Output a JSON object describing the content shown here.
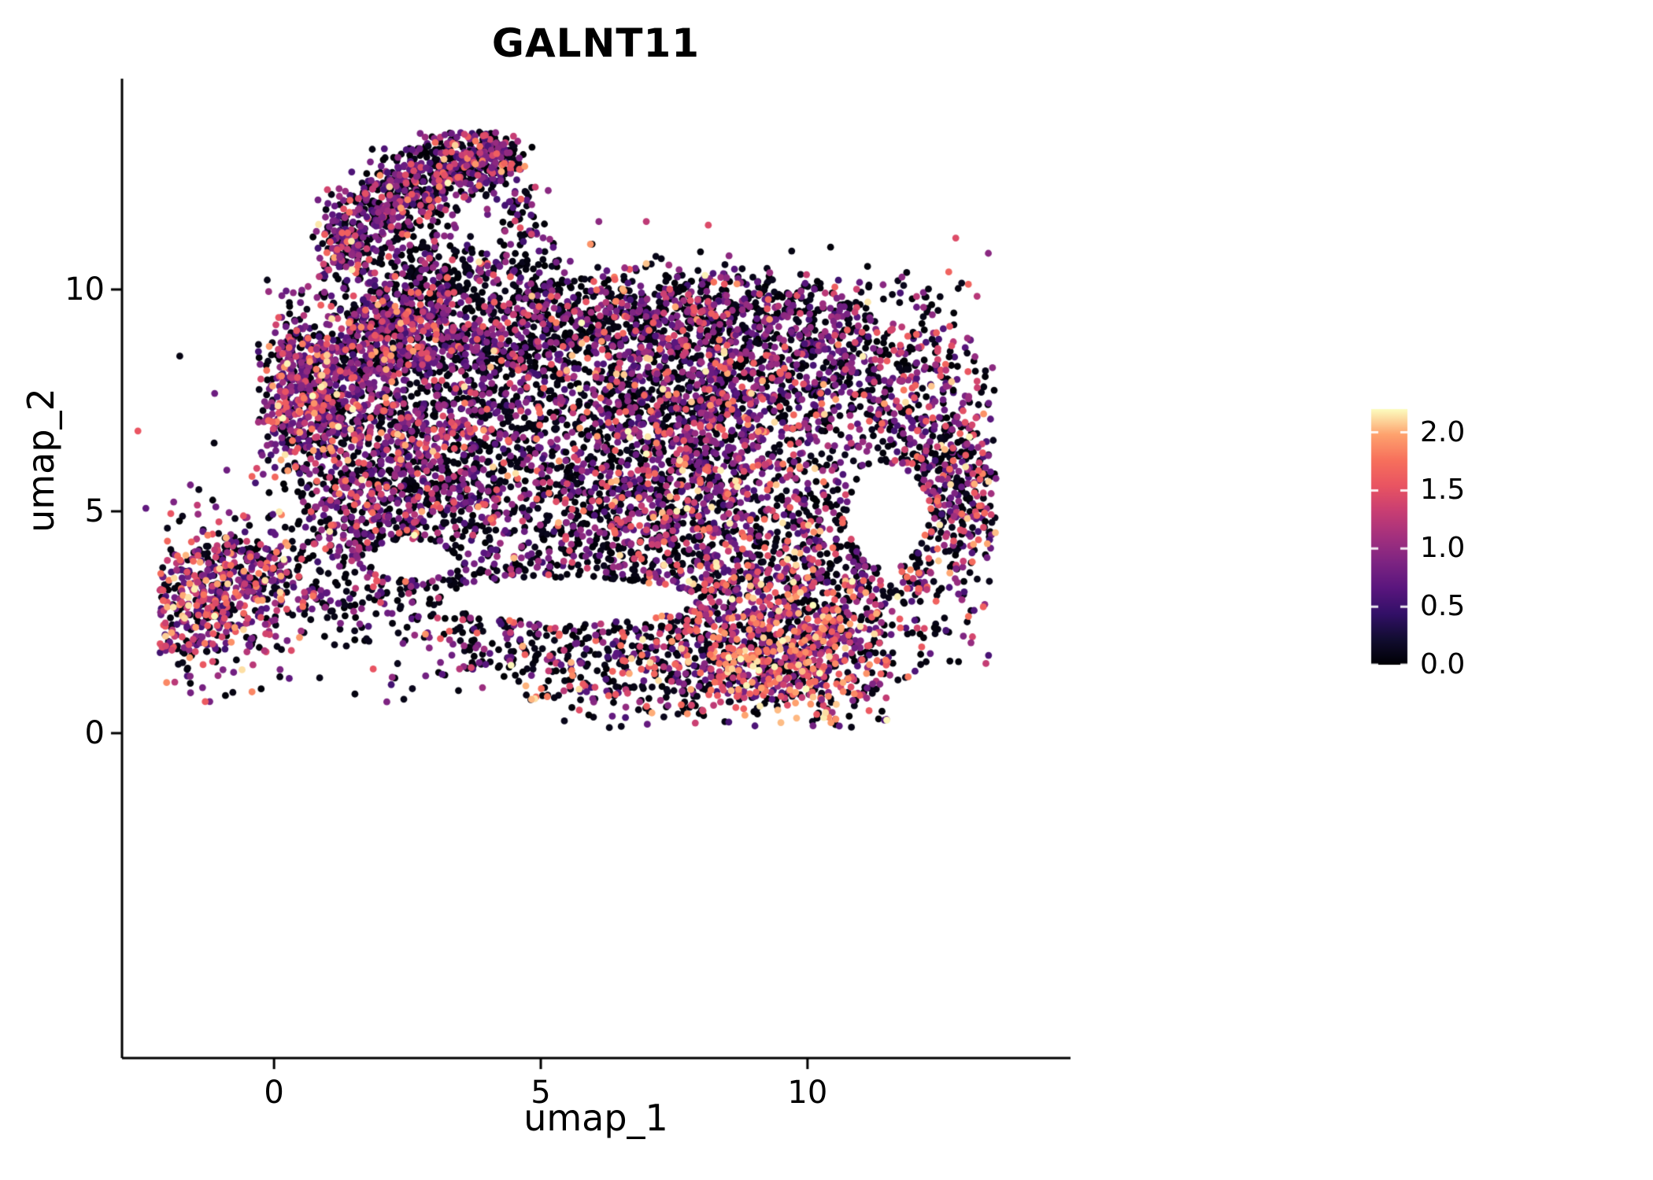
{
  "chart_data": {
    "type": "scatter",
    "title": "GALNT11",
    "xlabel": "umap_1",
    "ylabel": "umap_2",
    "xlim": [
      -2.85,
      14.93
    ],
    "ylim": [
      -7.32,
      14.75
    ],
    "grid": false,
    "legend_position": "right",
    "x_ticks": [
      {
        "value": 0,
        "label": "0"
      },
      {
        "value": 5,
        "label": "5"
      },
      {
        "value": 10,
        "label": "10"
      }
    ],
    "y_ticks": [
      {
        "value": 0,
        "label": "0"
      },
      {
        "value": 5,
        "label": "5"
      },
      {
        "value": 10,
        "label": "10"
      }
    ],
    "point_radius": 4.4,
    "color_domain": [
      0,
      2.2
    ],
    "colormap": [
      {
        "t": 0.0,
        "color": "#000004"
      },
      {
        "t": 0.1,
        "color": "#120d31"
      },
      {
        "t": 0.2,
        "color": "#331068"
      },
      {
        "t": 0.3,
        "color": "#5a167e"
      },
      {
        "t": 0.4,
        "color": "#7d2482"
      },
      {
        "t": 0.5,
        "color": "#a3307e"
      },
      {
        "t": 0.6,
        "color": "#c83e73"
      },
      {
        "t": 0.7,
        "color": "#e95462"
      },
      {
        "t": 0.8,
        "color": "#f7705c"
      },
      {
        "t": 0.9,
        "color": "#fea26e"
      },
      {
        "t": 1.0,
        "color": "#fcfdbf"
      }
    ],
    "colorbar": {
      "ticks": [
        {
          "value": 2.0,
          "label": "2.0"
        },
        {
          "value": 1.5,
          "label": "1.5"
        },
        {
          "value": 1.0,
          "label": "1.0"
        },
        {
          "value": 0.5,
          "label": "0.5"
        },
        {
          "value": 0.0,
          "label": "0.0"
        }
      ]
    },
    "expression_levels": [
      {
        "name": "zero",
        "range": [
          0.0,
          0.12
        ]
      },
      {
        "name": "purple",
        "range": [
          0.5,
          1.1
        ]
      },
      {
        "name": "pink",
        "range": [
          1.2,
          1.7
        ]
      },
      {
        "name": "orange",
        "range": [
          1.7,
          2.2
        ]
      }
    ],
    "seed": 1234567,
    "holes": [
      {
        "cx": 5.5,
        "cy": 3.0,
        "rx": 2.4,
        "ry": 0.5
      },
      {
        "cx": 11.5,
        "cy": 4.9,
        "rx": 0.75,
        "ry": 1.15
      },
      {
        "cx": 2.6,
        "cy": 3.9,
        "rx": 0.8,
        "ry": 0.45
      }
    ],
    "clusters": [
      {
        "cx": 1.3,
        "cy": 11.1,
        "sx": 0.25,
        "sy": 0.4,
        "n": 150,
        "p": [
          0.45,
          0.4,
          0.12,
          0.03
        ]
      },
      {
        "cx": 2.0,
        "cy": 11.9,
        "sx": 0.35,
        "sy": 0.45,
        "n": 180,
        "p": [
          0.45,
          0.4,
          0.12,
          0.03
        ]
      },
      {
        "cx": 2.8,
        "cy": 12.4,
        "sx": 0.4,
        "sy": 0.4,
        "n": 200,
        "p": [
          0.48,
          0.38,
          0.11,
          0.03
        ]
      },
      {
        "cx": 3.6,
        "cy": 12.9,
        "sx": 0.45,
        "sy": 0.35,
        "n": 220,
        "p": [
          0.45,
          0.4,
          0.12,
          0.03
        ]
      },
      {
        "cx": 4.15,
        "cy": 13.0,
        "sx": 0.28,
        "sy": 0.4,
        "n": 110,
        "p": [
          0.5,
          0.36,
          0.11,
          0.03
        ]
      },
      {
        "cx": 4.6,
        "cy": 11.6,
        "sx": 0.3,
        "sy": 0.5,
        "n": 60,
        "p": [
          0.55,
          0.33,
          0.09,
          0.03
        ]
      },
      {
        "cx": 2.5,
        "cy": 10.9,
        "sx": 0.55,
        "sy": 0.5,
        "n": 80,
        "p": [
          0.6,
          0.3,
          0.08,
          0.02
        ]
      },
      {
        "cx": 3.1,
        "cy": 10.2,
        "sx": 0.55,
        "sy": 0.45,
        "n": 70,
        "p": [
          0.65,
          0.27,
          0.06,
          0.02
        ]
      },
      {
        "cx": 3.9,
        "cy": 10.4,
        "sx": 1.0,
        "sy": 0.4,
        "n": 80,
        "p": [
          0.7,
          0.24,
          0.05,
          0.01
        ]
      },
      {
        "cx": 2.0,
        "cy": 9.8,
        "sx": 0.6,
        "sy": 0.6,
        "n": 90,
        "p": [
          0.6,
          0.3,
          0.08,
          0.02
        ]
      },
      {
        "cx": 1.0,
        "cy": 7.3,
        "sx": 0.75,
        "sy": 0.95,
        "n": 620,
        "p": [
          0.33,
          0.47,
          0.15,
          0.05
        ],
        "xmin": -0.3
      },
      {
        "cx": 0.45,
        "cy": 7.8,
        "sx": 0.35,
        "sy": 0.75,
        "n": 200,
        "p": [
          0.2,
          0.45,
          0.25,
          0.1
        ],
        "xmin": -0.3
      },
      {
        "cx": 2.2,
        "cy": 8.9,
        "sx": 0.7,
        "sy": 0.6,
        "n": 350,
        "p": [
          0.4,
          0.42,
          0.14,
          0.04
        ]
      },
      {
        "cx": 3.5,
        "cy": 8.8,
        "sx": 1.1,
        "sy": 0.8,
        "n": 480,
        "p": [
          0.52,
          0.36,
          0.1,
          0.02
        ]
      },
      {
        "cx": 2.9,
        "cy": 6.0,
        "sx": 1.2,
        "sy": 1.1,
        "n": 620,
        "p": [
          0.45,
          0.4,
          0.12,
          0.03
        ]
      },
      {
        "cx": 5.5,
        "cy": 7.4,
        "sx": 1.5,
        "sy": 1.3,
        "n": 750,
        "p": [
          0.56,
          0.33,
          0.09,
          0.02
        ]
      },
      {
        "cx": 7.9,
        "cy": 7.0,
        "sx": 1.0,
        "sy": 1.5,
        "n": 850,
        "p": [
          0.36,
          0.44,
          0.15,
          0.05
        ]
      },
      {
        "cx": 6.2,
        "cy": 9.4,
        "sx": 1.2,
        "sy": 0.5,
        "n": 280,
        "p": [
          0.6,
          0.31,
          0.07,
          0.02
        ]
      },
      {
        "cx": 9.0,
        "cy": 9.3,
        "sx": 1.3,
        "sy": 0.55,
        "n": 330,
        "p": [
          0.55,
          0.35,
          0.08,
          0.02
        ]
      },
      {
        "cx": 7.5,
        "cy": 10.0,
        "sx": 2.5,
        "sy": 0.35,
        "n": 160,
        "p": [
          0.6,
          0.3,
          0.08,
          0.02
        ],
        "ymax": 10.4
      },
      {
        "cx": 10.3,
        "cy": 8.0,
        "sx": 1.2,
        "sy": 0.9,
        "n": 520,
        "p": [
          0.5,
          0.37,
          0.1,
          0.03
        ]
      },
      {
        "cx": 12.4,
        "cy": 6.9,
        "sx": 0.55,
        "sy": 1.3,
        "n": 330,
        "p": [
          0.42,
          0.38,
          0.15,
          0.05
        ]
      },
      {
        "cx": 10.9,
        "cy": 5.2,
        "sx": 1.0,
        "sy": 1.1,
        "n": 150,
        "p": [
          0.65,
          0.25,
          0.08,
          0.02
        ]
      },
      {
        "cx": 6.5,
        "cy": 4.6,
        "sx": 1.5,
        "sy": 1.0,
        "n": 520,
        "p": [
          0.58,
          0.3,
          0.09,
          0.03
        ]
      },
      {
        "cx": 8.8,
        "cy": 3.3,
        "sx": 1.3,
        "sy": 1.0,
        "n": 620,
        "p": [
          0.38,
          0.3,
          0.22,
          0.1
        ]
      },
      {
        "cx": 6.8,
        "cy": 1.6,
        "sx": 1.8,
        "sy": 0.65,
        "n": 480,
        "p": [
          0.62,
          0.22,
          0.11,
          0.05
        ]
      },
      {
        "cx": 9.4,
        "cy": 1.4,
        "sx": 1.0,
        "sy": 0.6,
        "n": 380,
        "p": [
          0.28,
          0.22,
          0.3,
          0.2
        ]
      },
      {
        "cx": 10.3,
        "cy": 2.3,
        "sx": 0.8,
        "sy": 0.8,
        "n": 300,
        "p": [
          0.4,
          0.25,
          0.22,
          0.13
        ]
      },
      {
        "cx": 11.8,
        "cy": 3.9,
        "sx": 0.9,
        "sy": 1.0,
        "n": 300,
        "p": [
          0.5,
          0.27,
          0.16,
          0.07
        ]
      },
      {
        "cx": 12.95,
        "cy": 5.4,
        "sx": 0.4,
        "sy": 1.0,
        "n": 140,
        "p": [
          0.5,
          0.3,
          0.14,
          0.06
        ]
      },
      {
        "cx": 4.1,
        "cy": 2.9,
        "sx": 1.0,
        "sy": 0.8,
        "n": 230,
        "p": [
          0.68,
          0.22,
          0.08,
          0.02
        ]
      },
      {
        "cx": 1.9,
        "cy": 4.8,
        "sx": 0.85,
        "sy": 0.7,
        "n": 300,
        "p": [
          0.5,
          0.36,
          0.1,
          0.04
        ]
      },
      {
        "cx": -1.35,
        "cy": 3.0,
        "sx": 0.75,
        "sy": 0.85,
        "n": 560,
        "p": [
          0.3,
          0.4,
          0.21,
          0.09
        ],
        "xmin": -2.15
      },
      {
        "cx": -0.35,
        "cy": 3.7,
        "sx": 0.5,
        "sy": 0.5,
        "n": 140,
        "p": [
          0.45,
          0.35,
          0.14,
          0.06
        ]
      },
      {
        "cx": 1.2,
        "cy": 2.9,
        "sx": 0.95,
        "sy": 0.6,
        "n": 110,
        "p": [
          0.7,
          0.22,
          0.06,
          0.02
        ]
      },
      {
        "cx": 7.0,
        "cy": 6.2,
        "sx": 3.4,
        "sy": 2.6,
        "n": 650,
        "p": [
          0.72,
          0.2,
          0.06,
          0.02
        ],
        "ymax": 10.2
      }
    ]
  }
}
